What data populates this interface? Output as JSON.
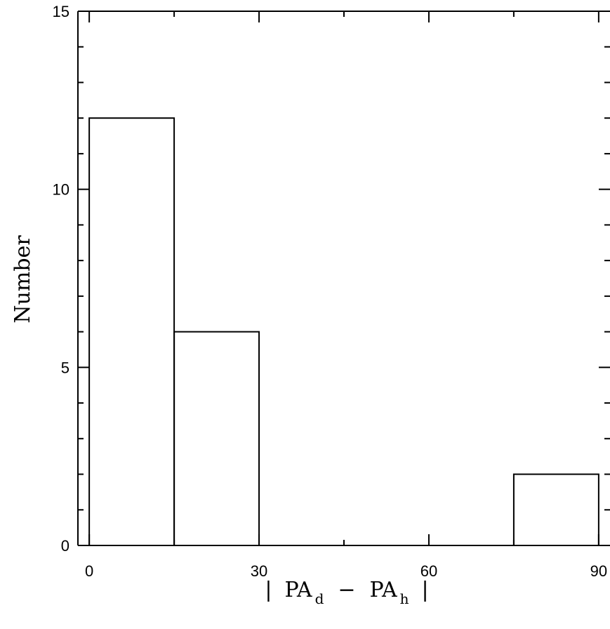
{
  "chart_data": {
    "type": "bar",
    "subtype": "histogram-step",
    "title": "",
    "xlabel": {
      "bar": "|",
      "term1": "PA",
      "term1_sub": "d",
      "minus": "−",
      "term2": "PA",
      "term2_sub": "h",
      "bar_close": "|"
    },
    "ylabel": "Number",
    "xlim": [
      -2,
      92
    ],
    "ylim": [
      0,
      15
    ],
    "xticks": [
      0,
      30,
      60,
      90
    ],
    "xtick_labels": [
      "0",
      "30",
      "60",
      "90"
    ],
    "xminor_step": 15,
    "yticks": [
      0,
      5,
      10,
      15
    ],
    "ytick_labels": [
      "0",
      "5",
      "10",
      "15"
    ],
    "yminor_step": 1,
    "bins": [
      {
        "start": 0,
        "end": 15,
        "value": 12
      },
      {
        "start": 15,
        "end": 30,
        "value": 6
      },
      {
        "start": 30,
        "end": 45,
        "value": 0
      },
      {
        "start": 45,
        "end": 60,
        "value": 0
      },
      {
        "start": 60,
        "end": 75,
        "value": 0
      },
      {
        "start": 75,
        "end": 90,
        "value": 2
      }
    ],
    "grid": false,
    "line_color": "#000000"
  }
}
